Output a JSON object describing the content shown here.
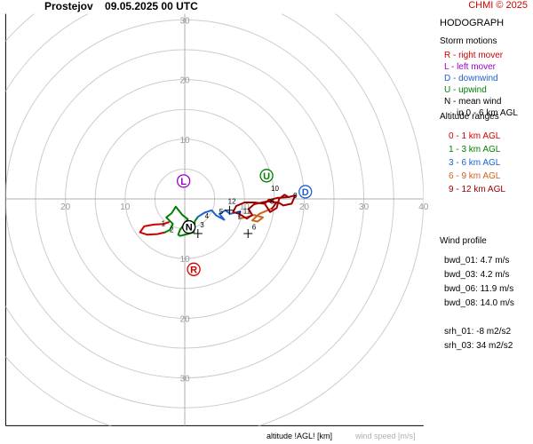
{
  "header": {
    "title": "Prostejov    09.05.2025 00 UTC",
    "copyright": "CHMI © 2025"
  },
  "sidebar": {
    "heading": "HODOGRAPH",
    "storm_motions": {
      "title": "Storm motions",
      "items": [
        {
          "text": "R - right mover",
          "color": "#d00000"
        },
        {
          "text": "L - left mover",
          "color": "#9900cc"
        },
        {
          "text": "D - downwind",
          "color": "#2060d0"
        },
        {
          "text": "U - upwind",
          "color": "#008000"
        },
        {
          "text": "N - mean wind",
          "color": "#000000"
        },
        {
          "text": "in 0 - 6 km AGL",
          "color": "#000000"
        }
      ]
    },
    "altitude_ranges": {
      "title": "Altitude ranges",
      "items": [
        {
          "text": "0 - 1 km AGL",
          "color": "#d00000"
        },
        {
          "text": "1 - 3 km AGL",
          "color": "#008000"
        },
        {
          "text": "3 - 6 km AGL",
          "color": "#2060d0"
        },
        {
          "text": "6 - 9 km AGL",
          "color": "#d06020"
        },
        {
          "text": "9 - 12 km AGL",
          "color": "#a00000"
        }
      ]
    },
    "wind_profile": {
      "title": "Wind profile",
      "items": [
        "bwd_01: 4.7 m/s",
        "bwd_03: 4.2 m/s",
        "bwd_06: 11.9 m/s",
        "bwd_08: 14.0 m/s",
        "",
        "srh_01: -8 m2/s2",
        "srh_03: 34 m2/s2"
      ]
    }
  },
  "footer": {
    "altitude_label": "altitude !AGL! [km]",
    "wind_speed_label": "wind speed [m/s]"
  },
  "chart_data": {
    "type": "hodograph",
    "rings": [
      5,
      10,
      15,
      20,
      25,
      30,
      35,
      40
    ],
    "ring_labels_y": [
      10,
      20,
      30
    ],
    "ring_labels_x": [
      10,
      20,
      30,
      40
    ],
    "xlim": [
      -30,
      40
    ],
    "ylim": [
      -38,
      31
    ],
    "storm_motions": [
      {
        "label": "R",
        "u": 1.5,
        "v": -11.8,
        "color": "#d00000"
      },
      {
        "label": "L",
        "u": -0.2,
        "v": 3.0,
        "color": "#9900cc"
      },
      {
        "label": "D",
        "u": 20.2,
        "v": 1.2,
        "color": "#2060d0"
      },
      {
        "label": "U",
        "u": 13.7,
        "v": 3.9,
        "color": "#008000"
      },
      {
        "label": "N",
        "u": 0.7,
        "v": -4.7,
        "color": "#000000"
      }
    ],
    "series": [
      {
        "name": "0 - 1 km AGL",
        "color": "#d00000",
        "points": [
          [
            -2.7,
            -3.9
          ],
          [
            -3.5,
            -4.2
          ],
          [
            -5.2,
            -4.3
          ],
          [
            -6.8,
            -4.6
          ],
          [
            -7.5,
            -5.6
          ],
          [
            -6.3,
            -6.0
          ],
          [
            -4.6,
            -5.9
          ],
          [
            -3.3,
            -5.6
          ]
        ]
      },
      {
        "name": "1 - 3 km AGL",
        "color": "#008000",
        "points": [
          [
            -3.3,
            -5.6
          ],
          [
            -2.5,
            -5.2
          ],
          [
            -2.0,
            -4.2
          ],
          [
            -3.1,
            -3.1
          ],
          [
            -2.2,
            -2.4
          ],
          [
            -1.5,
            -1.3
          ],
          [
            -0.4,
            -2.7
          ],
          [
            0.5,
            -3.4
          ],
          [
            -0.8,
            -5.2
          ],
          [
            -1.1,
            -6.0
          ],
          [
            -0.8,
            -6.2
          ],
          [
            0.4,
            -5.9
          ],
          [
            1.5,
            -5.6
          ],
          [
            1.7,
            -3.7
          ],
          [
            2.2,
            -3.0
          ]
        ]
      },
      {
        "name": "3 - 6 km AGL",
        "color": "#2060d0",
        "points": [
          [
            2.2,
            -3.0
          ],
          [
            3.3,
            -2.3
          ],
          [
            4.5,
            -1.9
          ],
          [
            5.3,
            -2.8
          ],
          [
            6.6,
            -3.5
          ],
          [
            5.8,
            -2.5
          ],
          [
            6.8,
            -1.9
          ],
          [
            7.6,
            -2.5
          ],
          [
            9.3,
            -2.1
          ],
          [
            9.1,
            -3.3
          ]
        ]
      },
      {
        "name": "6 - 9 km AGL",
        "color": "#d06020",
        "points": [
          [
            9.1,
            -3.3
          ],
          [
            10.2,
            -3.1
          ],
          [
            11.6,
            -2.7
          ],
          [
            13.1,
            -3.1
          ],
          [
            12.2,
            -3.8
          ],
          [
            11.3,
            -3.6
          ],
          [
            12.5,
            -2.5
          ],
          [
            13.9,
            -1.9
          ],
          [
            14.6,
            -1.6
          ]
        ]
      },
      {
        "name": "9 - 12 km AGL",
        "color": "#a00000",
        "points": [
          [
            14.6,
            -1.6
          ],
          [
            15.3,
            -0.7
          ],
          [
            14.1,
            -0.1
          ],
          [
            13.4,
            -0.8
          ],
          [
            14.3,
            -2.2
          ],
          [
            15.4,
            -1.5
          ],
          [
            15.8,
            0.0
          ],
          [
            16.7,
            0.7
          ],
          [
            17.4,
            0.3
          ],
          [
            18.5,
            0.6
          ],
          [
            17.9,
            -0.8
          ],
          [
            16.5,
            -1.1
          ],
          [
            15.7,
            -0.6
          ],
          [
            13.8,
            -0.4
          ],
          [
            11.6,
            -0.9
          ],
          [
            10.7,
            -1.7
          ],
          [
            11.3,
            -2.7
          ],
          [
            10.4,
            -3.3
          ],
          [
            9.1,
            -2.5
          ],
          [
            8.1,
            -2.2
          ],
          [
            8.6,
            -1.2
          ],
          [
            10.0,
            -0.6
          ],
          [
            11.7,
            -0.6
          ],
          [
            13.2,
            -0.8
          ],
          [
            14.2,
            -0.2
          ],
          [
            15.6,
            0.2
          ],
          [
            17.2,
            0.3
          ]
        ]
      }
    ],
    "height_labels": [
      {
        "text": "1",
        "u": -3.6,
        "v": -4.1,
        "color": "#000000"
      },
      {
        "text": "2",
        "u": -2.2,
        "v": -5.1,
        "color": "#000000"
      },
      {
        "text": "3",
        "u": 2.9,
        "v": -4.3,
        "color": "#000000"
      },
      {
        "text": "4",
        "u": 3.7,
        "v": -2.8,
        "color": "#000000"
      },
      {
        "text": "5",
        "u": 6.1,
        "v": -2.1,
        "color": "#000000"
      },
      {
        "text": "6",
        "u": 11.6,
        "v": -4.7,
        "color": "#000000"
      },
      {
        "text": "7",
        "u": 9.1,
        "v": -2.5,
        "color": "#000000"
      },
      {
        "text": "8",
        "u": 14.6,
        "v": -0.4,
        "color": "#000000"
      },
      {
        "text": "9",
        "u": 18.5,
        "v": 0.6,
        "color": "#000000"
      },
      {
        "text": "10",
        "u": 15.1,
        "v": 1.8,
        "color": "#000000"
      },
      {
        "text": "11",
        "u": 10.4,
        "v": -2.0,
        "color": "#000000"
      },
      {
        "text": "12",
        "u": 7.9,
        "v": -0.4,
        "color": "#000000"
      }
    ],
    "crosses": [
      [
        2.2,
        -5.8
      ],
      [
        7.5,
        -1.9
      ],
      [
        10.6,
        -5.8
      ]
    ]
  }
}
